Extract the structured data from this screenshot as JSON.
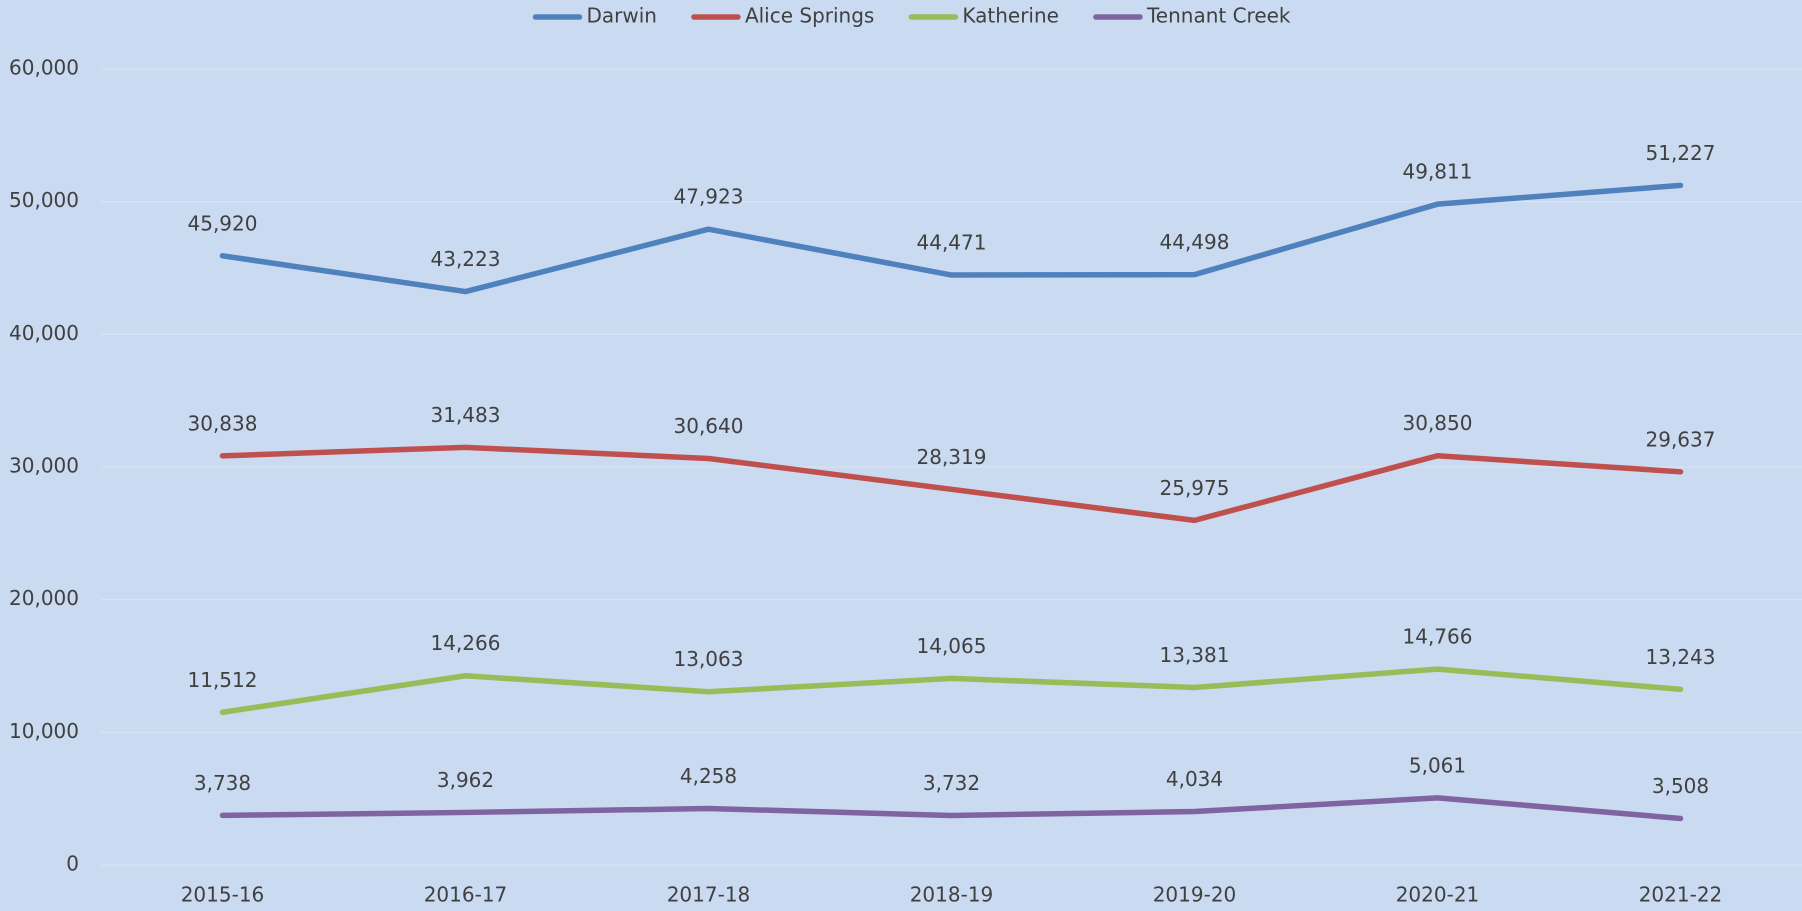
{
  "chart_data": {
    "type": "line",
    "categories": [
      "2015-16",
      "2016-17",
      "2017-18",
      "2018-19",
      "2019-20",
      "2020-21",
      "2021-22"
    ],
    "series": [
      {
        "name": "Darwin",
        "color": "#4f81bd",
        "values": [
          45920,
          43223,
          47923,
          44471,
          44498,
          49811,
          51227
        ],
        "value_labels": [
          "45,920",
          "43,223",
          "47,923",
          "44,471",
          "44,498",
          "49,811",
          "51,227"
        ]
      },
      {
        "name": "Alice Springs",
        "color": "#c0504d",
        "values": [
          30838,
          31483,
          30640,
          28319,
          25975,
          30850,
          29637
        ],
        "value_labels": [
          "30,838",
          "31,483",
          "30,640",
          "28,319",
          "25,975",
          "30,850",
          "29,637"
        ]
      },
      {
        "name": "Katherine",
        "color": "#9bbb59",
        "values": [
          11512,
          14266,
          13063,
          14065,
          13381,
          14766,
          13243
        ],
        "value_labels": [
          "11,512",
          "14,266",
          "13,063",
          "14,065",
          "13,381",
          "14,766",
          "13,243"
        ]
      },
      {
        "name": "Tennant Creek",
        "color": "#8064a2",
        "values": [
          3738,
          3962,
          4258,
          3732,
          4034,
          5061,
          3508
        ],
        "value_labels": [
          "3,738",
          "3,962",
          "4,258",
          "3,732",
          "4,034",
          "5,061",
          "3,508"
        ]
      }
    ],
    "ylim": [
      0,
      60000
    ],
    "yticks": [
      0,
      {
        "value": 10000,
        "label": "10,000"
      },
      {
        "value": 20000,
        "label": "20,000"
      },
      {
        "value": 30000,
        "label": "30,000"
      },
      {
        "value": 40000,
        "label": "40,000"
      },
      {
        "value": 50000,
        "label": "50,000"
      },
      {
        "value": 60000,
        "label": "60,000"
      }
    ],
    "grid": true,
    "legend": "top"
  }
}
